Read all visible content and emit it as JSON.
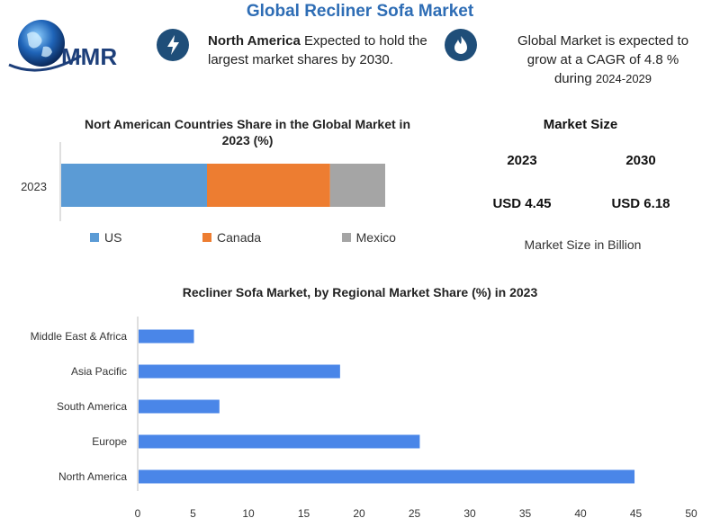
{
  "header": {
    "title": "Global Recliner Sofa Market",
    "logo_text": "MMR"
  },
  "highlights": [
    {
      "icon": "lightning-bolt-icon",
      "bold": "North America",
      "text": " Expected to hold the largest market shares by 2030."
    },
    {
      "icon": "flame-icon",
      "line1": "Global Market is expected to",
      "line2": "grow at a CAGR of 4.8 %",
      "line3_a": "during ",
      "line3_b": "2024-2029"
    }
  ],
  "market_size": {
    "heading": "Market Size",
    "year_a": "2023",
    "year_b": "2030",
    "value_a": "USD 4.45",
    "value_b": "USD 6.18",
    "note": "Market Size in Billion"
  },
  "colors": {
    "title": "#2e6db5",
    "us": "#5b9bd5",
    "canada": "#ed7d31",
    "mexico": "#a5a5a5",
    "bars": "#4a86e8"
  },
  "chart_data": [
    {
      "type": "bar",
      "orientation": "horizontal",
      "stacked": true,
      "title": "Nort American Countries Share in the Global Market in 2023 (%)",
      "categories": [
        "2023"
      ],
      "series": [
        {
          "name": "US",
          "values": [
            45
          ]
        },
        {
          "name": "Canada",
          "values": [
            38
          ]
        },
        {
          "name": "Mexico",
          "values": [
            17
          ]
        }
      ],
      "legend": "bottom",
      "grid": false
    },
    {
      "type": "bar",
      "orientation": "horizontal",
      "title": "Recliner Sofa Market, by Regional Market Share (%) in 2023",
      "categories": [
        "Middle East & Africa",
        "Asia Pacific",
        "South America",
        "Europe",
        "North America"
      ],
      "values": [
        5,
        18.2,
        7.3,
        25.4,
        44.8
      ],
      "xlim": [
        0,
        50
      ],
      "xticks": [
        "0",
        "5",
        "10",
        "15",
        "20",
        "25",
        "30",
        "35",
        "40",
        "45",
        "50"
      ],
      "grid": false
    }
  ]
}
